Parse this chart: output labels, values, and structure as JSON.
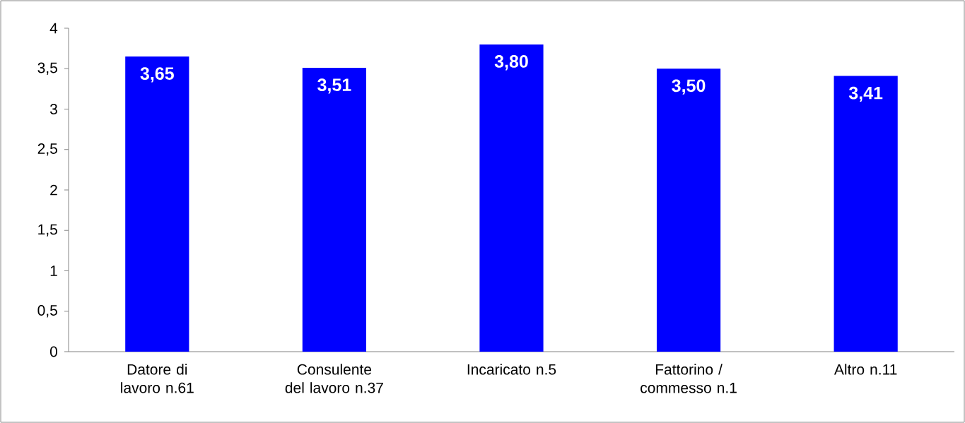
{
  "chart_data": {
    "type": "bar",
    "categories": [
      "Datore di lavoro n.61",
      "Consulente del lavoro n.37",
      "Incaricato n.5",
      "Fattorino / commesso n.1",
      "Altro n.11"
    ],
    "values": [
      3.65,
      3.51,
      3.8,
      3.5,
      3.41
    ],
    "value_labels": [
      "3,65",
      "3,51",
      "3,80",
      "3,50",
      "3,41"
    ],
    "color": "#0000ff",
    "ylim": [
      0,
      4
    ],
    "yticks": [
      0,
      {
        "value": 0.5,
        "label": "0,5"
      },
      1,
      {
        "value": 1.5,
        "label": "1,5"
      },
      2,
      {
        "value": 2.5,
        "label": "2,5"
      },
      3,
      {
        "value": 3.5,
        "label": "3,5"
      },
      4
    ],
    "grid": false
  }
}
